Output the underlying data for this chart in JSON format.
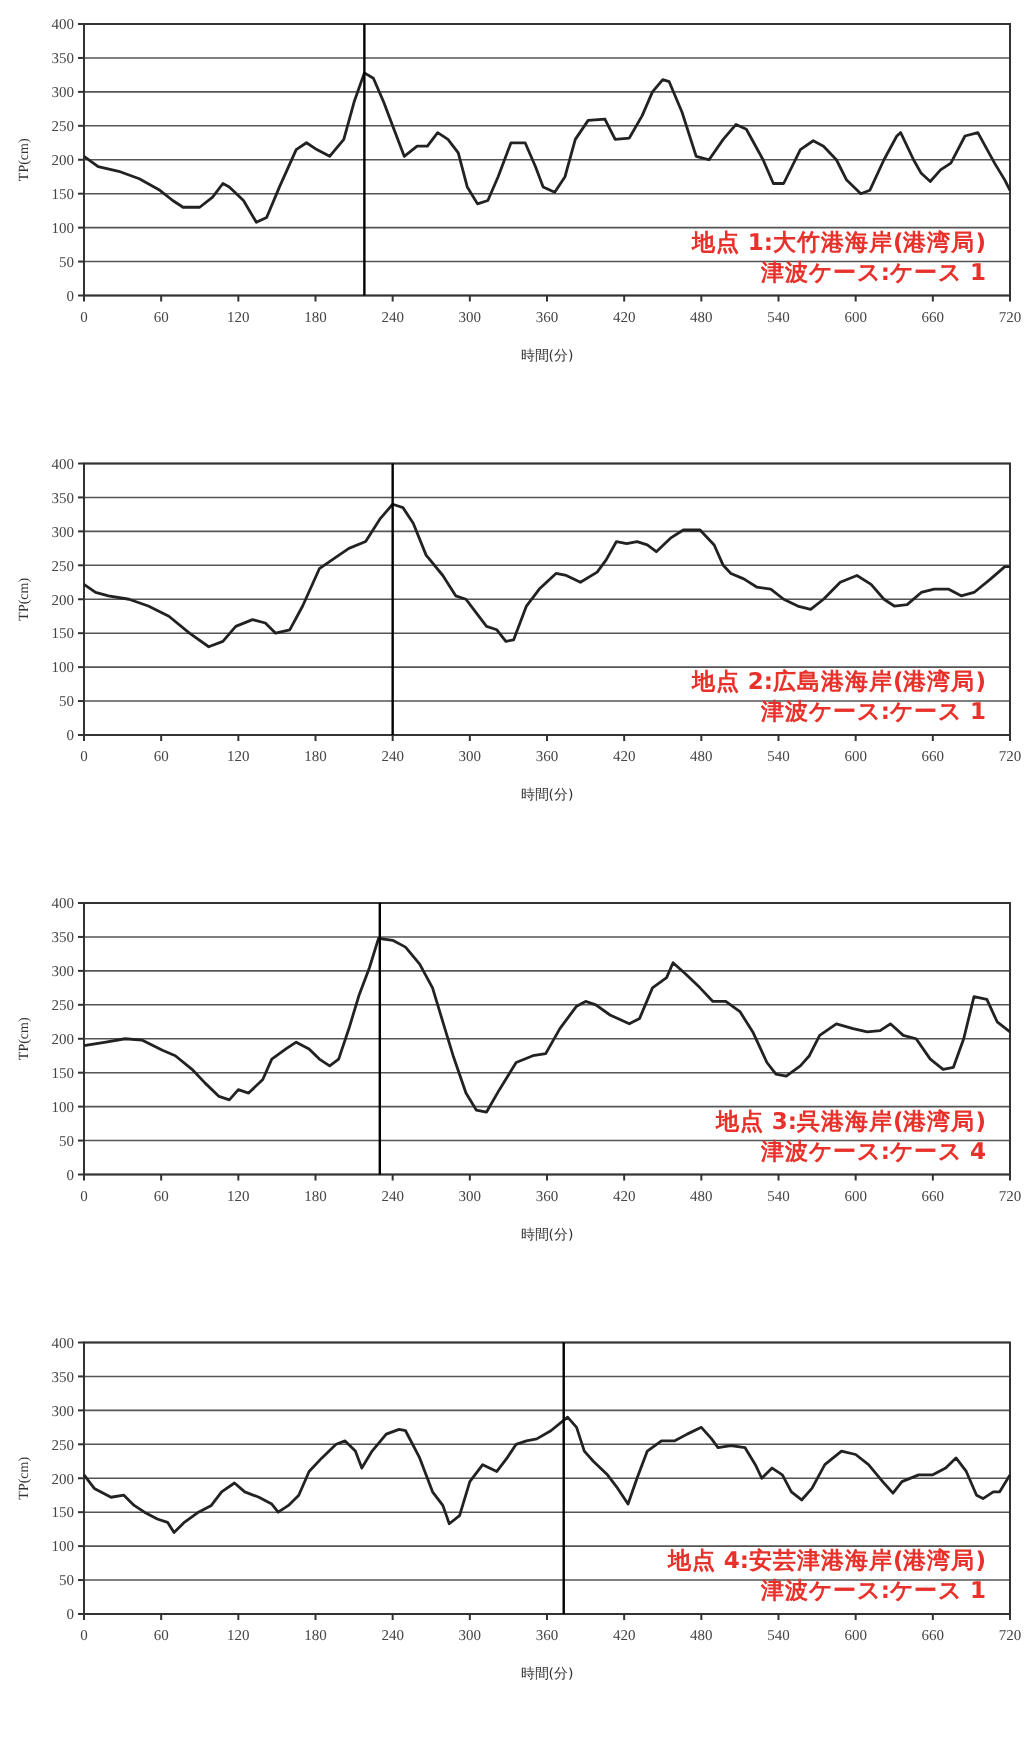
{
  "chart_data": [
    {
      "type": "line",
      "xlabel": "時間(分)",
      "ylabel": "TP(cm)",
      "xlim": [
        0,
        720
      ],
      "xticks": [
        0,
        60,
        120,
        180,
        240,
        300,
        360,
        420,
        480,
        540,
        600,
        660,
        720
      ],
      "ylim": [
        0,
        400
      ],
      "yticks": [
        0,
        50,
        100,
        150,
        200,
        250,
        300,
        350,
        400
      ],
      "grid": "y",
      "marker": "none",
      "line_style": "solid",
      "ref_lines": [
        {
          "axis": "x",
          "value": 218,
          "color": "#000000"
        }
      ],
      "annotations": [
        "地点 1:大竹港海岸(港湾局)",
        "津波ケース:ケース 1"
      ],
      "series": [
        {
          "color": "#222222",
          "x": [
            0,
            11,
            27,
            43,
            59,
            69,
            77,
            90,
            100,
            108,
            113,
            124,
            134,
            142,
            152,
            165,
            173,
            181,
            191,
            202,
            210,
            218,
            225,
            233,
            241,
            249,
            259,
            267,
            275,
            283,
            291,
            298,
            306,
            314,
            322,
            332,
            343,
            351,
            357,
            366,
            374,
            382,
            392,
            405,
            413,
            424,
            434,
            442,
            450,
            455,
            465,
            476,
            486,
            497,
            507,
            515,
            528,
            536,
            544,
            557,
            567,
            575,
            585,
            593,
            604,
            611,
            622,
            632,
            635,
            645,
            651,
            658,
            666,
            674,
            685,
            695,
            708,
            716,
            720
          ],
          "values": [
            205,
            190,
            183,
            172,
            155,
            140,
            130,
            130,
            145,
            165,
            160,
            140,
            108,
            115,
            160,
            215,
            225,
            215,
            205,
            230,
            285,
            328,
            320,
            285,
            245,
            205,
            220,
            220,
            240,
            230,
            210,
            160,
            135,
            140,
            175,
            225,
            225,
            190,
            160,
            152,
            175,
            230,
            258,
            260,
            230,
            232,
            265,
            300,
            318,
            315,
            270,
            205,
            200,
            230,
            252,
            245,
            200,
            165,
            165,
            215,
            228,
            220,
            200,
            170,
            150,
            155,
            200,
            235,
            240,
            200,
            180,
            168,
            185,
            195,
            235,
            240,
            195,
            170,
            155
          ]
        }
      ]
    },
    {
      "type": "line",
      "xlabel": "時間(分)",
      "ylabel": "TP(cm)",
      "xlim": [
        0,
        720
      ],
      "xticks": [
        0,
        60,
        120,
        180,
        240,
        300,
        360,
        420,
        480,
        540,
        600,
        660,
        720
      ],
      "ylim": [
        0,
        400
      ],
      "yticks": [
        0,
        50,
        100,
        150,
        200,
        250,
        300,
        350,
        400
      ],
      "grid": "y",
      "marker": "none",
      "line_style": "solid",
      "ref_lines": [
        {
          "axis": "x",
          "value": 240,
          "color": "#000000"
        }
      ],
      "annotations": [
        "地点 2:広島港海岸(港湾局)",
        "津波ケース:ケース 1"
      ],
      "series": [
        {
          "color": "#222222",
          "x": [
            0,
            9,
            19,
            35,
            50,
            66,
            82,
            97,
            108,
            118,
            131,
            141,
            149,
            160,
            170,
            183,
            196,
            206,
            219,
            230,
            240,
            248,
            256,
            266,
            279,
            289,
            297,
            305,
            313,
            321,
            328,
            334,
            344,
            354,
            367,
            375,
            386,
            399,
            406,
            414,
            422,
            430,
            438,
            445,
            456,
            466,
            479,
            490,
            497,
            503,
            513,
            523,
            534,
            544,
            555,
            565,
            575,
            588,
            601,
            612,
            622,
            630,
            640,
            651,
            661,
            672,
            682,
            692,
            705,
            716,
            720
          ],
          "values": [
            222,
            210,
            205,
            200,
            190,
            175,
            150,
            130,
            138,
            160,
            170,
            165,
            150,
            155,
            190,
            245,
            262,
            275,
            285,
            318,
            340,
            335,
            312,
            265,
            235,
            205,
            200,
            180,
            160,
            155,
            138,
            140,
            190,
            215,
            238,
            235,
            225,
            240,
            258,
            285,
            282,
            285,
            280,
            270,
            290,
            302,
            302,
            280,
            250,
            238,
            230,
            218,
            215,
            200,
            190,
            185,
            200,
            225,
            235,
            222,
            200,
            190,
            192,
            210,
            215,
            215,
            205,
            210,
            230,
            248,
            248
          ]
        }
      ]
    },
    {
      "type": "line",
      "xlabel": "時間(分)",
      "ylabel": "TP(cm)",
      "xlim": [
        0,
        720
      ],
      "xticks": [
        0,
        60,
        120,
        180,
        240,
        300,
        360,
        420,
        480,
        540,
        600,
        660,
        720
      ],
      "ylim": [
        0,
        400
      ],
      "yticks": [
        0,
        50,
        100,
        150,
        200,
        250,
        300,
        350,
        400
      ],
      "grid": "y",
      "marker": "none",
      "line_style": "solid",
      "ref_lines": [
        {
          "axis": "x",
          "value": 230,
          "color": "#000000"
        }
      ],
      "annotations": [
        "地点 3:呉港海岸(港湾局)",
        "津波ケース:ケース 4"
      ],
      "series": [
        {
          "color": "#222222",
          "x": [
            0,
            17,
            32,
            45,
            61,
            71,
            84,
            94,
            105,
            113,
            120,
            128,
            139,
            146,
            157,
            165,
            175,
            183,
            191,
            198,
            206,
            214,
            222,
            229,
            240,
            250,
            261,
            271,
            279,
            287,
            297,
            305,
            313,
            323,
            336,
            349,
            359,
            370,
            383,
            390,
            398,
            409,
            424,
            432,
            442,
            453,
            458,
            468,
            479,
            489,
            499,
            510,
            520,
            531,
            538,
            546,
            557,
            564,
            572,
            585,
            598,
            609,
            619,
            627,
            637,
            647,
            658,
            668,
            676,
            684,
            692,
            702,
            710,
            720
          ],
          "values": [
            190,
            195,
            200,
            198,
            183,
            175,
            155,
            135,
            115,
            110,
            125,
            120,
            140,
            170,
            185,
            195,
            185,
            170,
            160,
            170,
            215,
            265,
            305,
            348,
            345,
            335,
            310,
            275,
            225,
            175,
            120,
            95,
            92,
            125,
            165,
            175,
            178,
            215,
            248,
            255,
            250,
            235,
            222,
            230,
            275,
            290,
            312,
            295,
            275,
            255,
            255,
            240,
            210,
            165,
            148,
            145,
            160,
            175,
            205,
            222,
            215,
            210,
            212,
            222,
            205,
            200,
            170,
            155,
            158,
            200,
            262,
            258,
            225,
            210
          ]
        }
      ]
    },
    {
      "type": "line",
      "xlabel": "時間(分)",
      "ylabel": "TP(cm)",
      "xlim": [
        0,
        720
      ],
      "xticks": [
        0,
        60,
        120,
        180,
        240,
        300,
        360,
        420,
        480,
        540,
        600,
        660,
        720
      ],
      "ylim": [
        0,
        400
      ],
      "yticks": [
        0,
        50,
        100,
        150,
        200,
        250,
        300,
        350,
        400
      ],
      "grid": "y",
      "marker": "none",
      "line_style": "solid",
      "ref_lines": [
        {
          "axis": "x",
          "value": 373,
          "color": "#000000"
        }
      ],
      "annotations": [
        "地点 4:安芸津港海岸(港湾局)",
        "津波ケース:ケース 1"
      ],
      "series": [
        {
          "color": "#222222",
          "x": [
            0,
            8,
            21,
            31,
            39,
            47,
            57,
            65,
            70,
            78,
            89,
            99,
            107,
            117,
            125,
            136,
            146,
            151,
            159,
            167,
            175,
            185,
            196,
            203,
            211,
            216,
            224,
            235,
            245,
            250,
            261,
            271,
            279,
            284,
            292,
            300,
            310,
            321,
            329,
            336,
            344,
            352,
            363,
            376,
            383,
            389,
            396,
            407,
            415,
            423,
            430,
            438,
            449,
            459,
            469,
            480,
            488,
            493,
            503,
            514,
            522,
            527,
            535,
            543,
            550,
            558,
            566,
            576,
            589,
            600,
            610,
            621,
            629,
            636,
            649,
            660,
            670,
            678,
            686,
            694,
            699,
            707,
            712,
            720
          ],
          "values": [
            205,
            185,
            172,
            175,
            160,
            150,
            140,
            135,
            120,
            135,
            150,
            160,
            180,
            193,
            180,
            172,
            162,
            150,
            160,
            175,
            210,
            230,
            250,
            255,
            240,
            215,
            240,
            265,
            272,
            270,
            230,
            180,
            160,
            133,
            145,
            195,
            220,
            210,
            230,
            250,
            255,
            258,
            270,
            290,
            275,
            240,
            225,
            205,
            185,
            162,
            200,
            240,
            255,
            255,
            265,
            275,
            258,
            245,
            248,
            245,
            220,
            200,
            215,
            205,
            180,
            168,
            185,
            220,
            240,
            235,
            220,
            195,
            178,
            195,
            205,
            205,
            215,
            230,
            210,
            175,
            170,
            180,
            180,
            205
          ]
        }
      ]
    }
  ]
}
